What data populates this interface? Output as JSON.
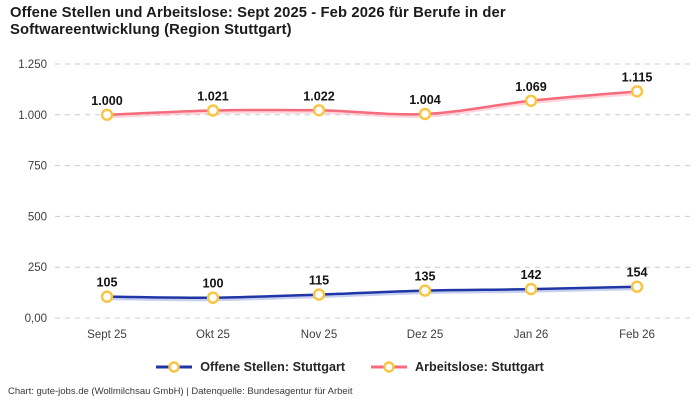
{
  "title_lines": [
    "Offene Stellen und Arbeitslose: Sept 2025 - Feb 2026 für Berufe in der",
    "Softwareentwicklung (Region Stuttgart)"
  ],
  "footer": "Chart: gute-jobs.de (Wollmilchsau GmbH) | Datenquelle: Bundesagentur für Arbeit",
  "colors": {
    "background": "#ffffff",
    "title_text": "#1b1b1b",
    "grid": "#cccccc",
    "axis_text": "#3e3e3e",
    "data_label_text": "#131313",
    "marker_fill": "#ffffff",
    "marker_ring": "#f7c540",
    "open_positions_line": "#2036a5",
    "open_positions_glow": "#97a8e3",
    "unemployed_line": "#f66c7d",
    "unemployed_glow": "#fbb3be"
  },
  "chart_data": {
    "type": "line",
    "title": "Offene Stellen und Arbeitslose: Sept 2025 - Feb 2026 für Berufe in der Softwareentwicklung (Region Stuttgart)",
    "categories": [
      "Sept 25",
      "Okt 25",
      "Nov 25",
      "Dez 25",
      "Jan 26",
      "Feb 26"
    ],
    "series": [
      {
        "name": "Offene Stellen: Stuttgart",
        "color": "#2036a5",
        "glow": "#97a8e3",
        "values": [
          105,
          100,
          115,
          135,
          142,
          154
        ],
        "value_labels": [
          "105",
          "100",
          "115",
          "135",
          "142",
          "154"
        ]
      },
      {
        "name": "Arbeitslose: Stuttgart",
        "color": "#f66c7d",
        "glow": "#fbb3be",
        "values": [
          1000,
          1021,
          1022,
          1004,
          1069,
          1115
        ],
        "value_labels": [
          "1.000",
          "1.021",
          "1.022",
          "1.004",
          "1.069",
          "1.115"
        ]
      }
    ],
    "y_ticks": [
      {
        "value": 0,
        "label": "0,00"
      },
      {
        "value": 250,
        "label": "250"
      },
      {
        "value": 500,
        "label": "500"
      },
      {
        "value": 750,
        "label": "750"
      },
      {
        "value": 1000,
        "label": "1.000"
      },
      {
        "value": 1250,
        "label": "1.250"
      }
    ],
    "ylim": [
      0,
      1250
    ],
    "xlabel": "",
    "ylabel": "",
    "grid": "horizontal-dashed",
    "legend_position": "bottom",
    "marker_style": {
      "fill": "#ffffff",
      "stroke": "#f7c540"
    }
  }
}
